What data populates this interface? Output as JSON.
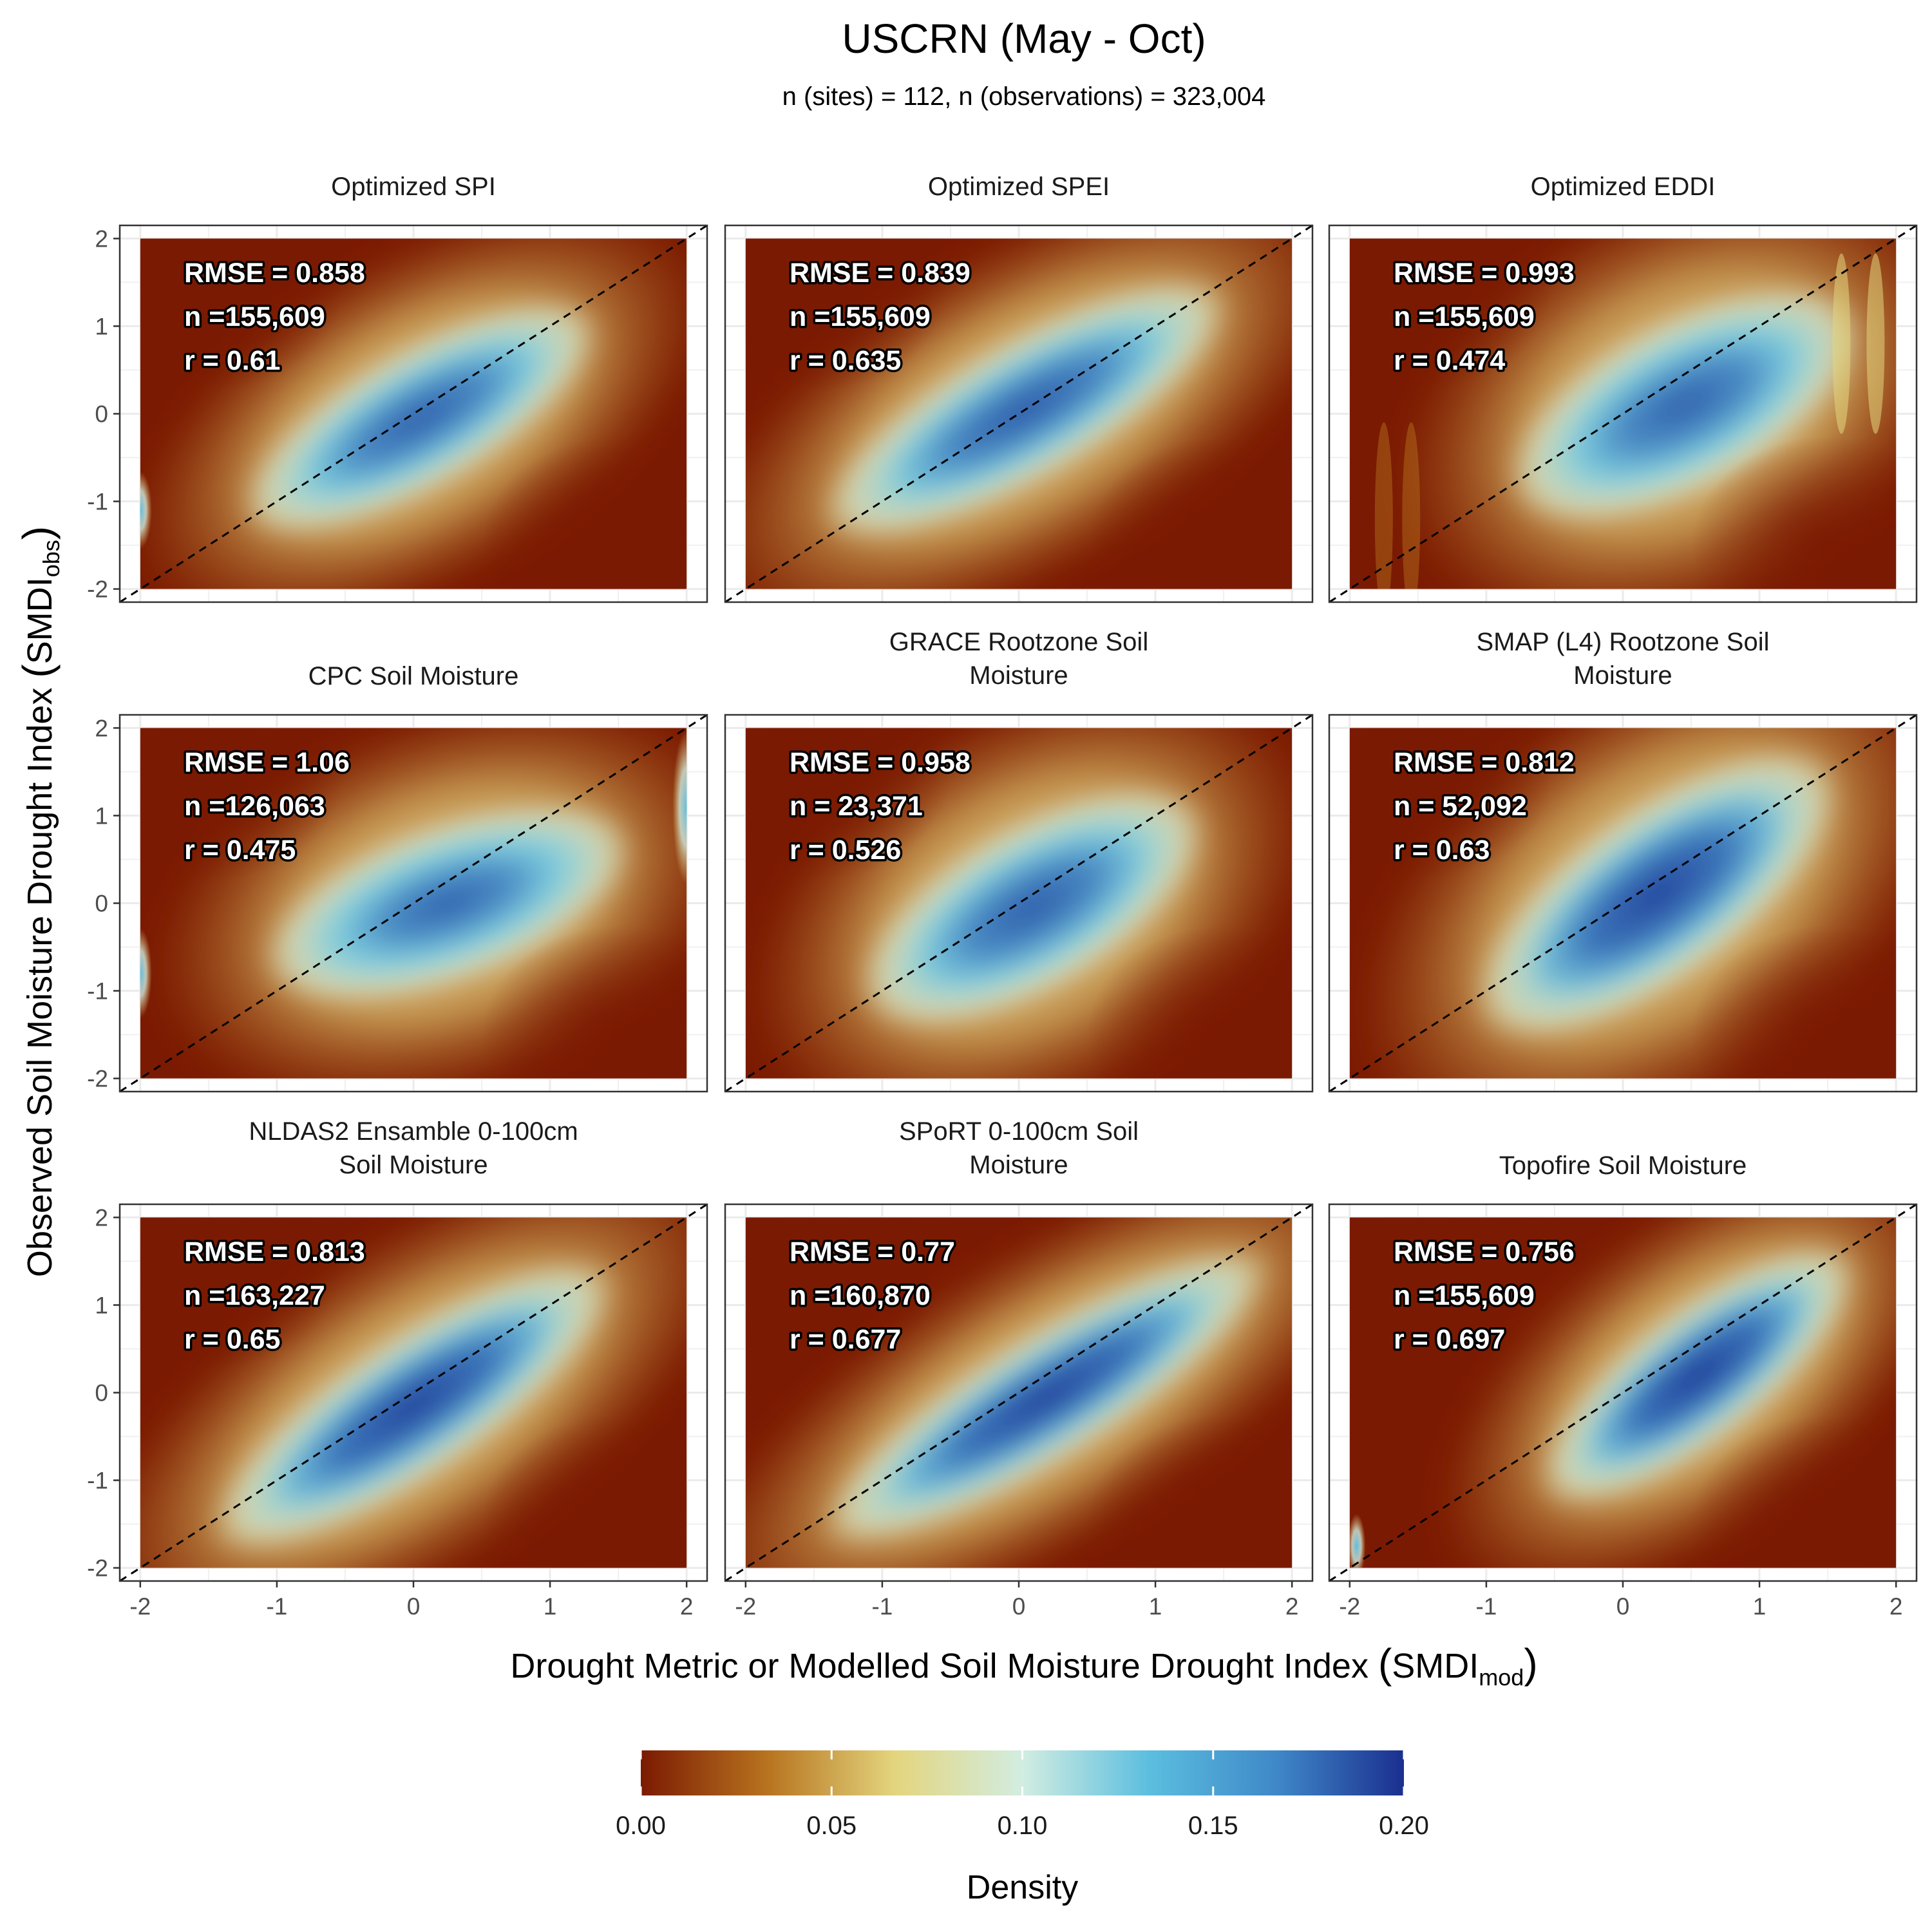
{
  "title": "USCRN (May - Oct)",
  "subtitle": "n (sites) = 112, n (observations) = 323,004",
  "chart_data": {
    "type": "heatmap",
    "xlabel": {
      "text": "Drought Metric or Modelled Soil Moisture Drought Index ",
      "sub_base": "SMDI",
      "sub": "mod"
    },
    "ylabel": {
      "text": "Observed Soil Moisture Drought Index ",
      "sub_base": "SMDI",
      "sub": "obs"
    },
    "x_ticks": [
      "-2",
      "-1",
      "0",
      "1",
      "2"
    ],
    "y_ticks": [
      "2",
      "1",
      "0",
      "-1",
      "-2"
    ],
    "xlim": [
      -2.15,
      2.15
    ],
    "ylim": [
      -2.15,
      2.15
    ],
    "reference_line": "1:1 dashed",
    "legend": {
      "title": "Density",
      "position": "bottom",
      "ticks": [
        "0.00",
        "0.05",
        "0.10",
        "0.15",
        "0.20"
      ],
      "colors": [
        "#7b1a02",
        "#b8741f",
        "#e3d57e",
        "#d2ede1",
        "#5bbedf",
        "#3f88c8",
        "#1b2f8f"
      ]
    },
    "panels": [
      {
        "title": [
          "Optimized SPI"
        ],
        "rmse_label": "RMSE = 0.858",
        "n_label": "n =155,609",
        "r_label": "r = 0.61",
        "rmse": 0.858,
        "n": 155609,
        "r": 0.61
      },
      {
        "title": [
          "Optimized SPEI"
        ],
        "rmse_label": "RMSE = 0.839",
        "n_label": "n =155,609",
        "r_label": "r = 0.635",
        "rmse": 0.839,
        "n": 155609,
        "r": 0.635
      },
      {
        "title": [
          "Optimized EDDI"
        ],
        "rmse_label": "RMSE = 0.993",
        "n_label": "n =155,609",
        "r_label": "r = 0.474",
        "rmse": 0.993,
        "n": 155609,
        "r": 0.474
      },
      {
        "title": [
          "CPC Soil Moisture"
        ],
        "rmse_label": "RMSE = 1.06",
        "n_label": "n =126,063",
        "r_label": "r = 0.475",
        "rmse": 1.06,
        "n": 126063,
        "r": 0.475
      },
      {
        "title": [
          "GRACE Rootzone Soil",
          "Moisture"
        ],
        "rmse_label": "RMSE = 0.958",
        "n_label": "n = 23,371",
        "r_label": "r = 0.526",
        "rmse": 0.958,
        "n": 23371,
        "r": 0.526
      },
      {
        "title": [
          "SMAP (L4) Rootzone Soil",
          "Moisture"
        ],
        "rmse_label": "RMSE = 0.812",
        "n_label": "n = 52,092",
        "r_label": "r = 0.63",
        "rmse": 0.812,
        "n": 52092,
        "r": 0.63
      },
      {
        "title": [
          "NLDAS2 Ensamble 0-100cm",
          "Soil Moisture"
        ],
        "rmse_label": "RMSE = 0.813",
        "n_label": "n =163,227",
        "r_label": "r = 0.65",
        "rmse": 0.813,
        "n": 163227,
        "r": 0.65
      },
      {
        "title": [
          "SPoRT 0-100cm Soil",
          "Moisture"
        ],
        "rmse_label": "RMSE = 0.77",
        "n_label": "n =160,870",
        "r_label": "r = 0.677",
        "rmse": 0.77,
        "n": 160870,
        "r": 0.677
      },
      {
        "title": [
          "Topofire Soil Moisture"
        ],
        "rmse_label": "RMSE = 0.756",
        "n_label": "n =155,609",
        "r_label": "r = 0.697",
        "rmse": 0.756,
        "n": 155609,
        "r": 0.697
      }
    ]
  }
}
